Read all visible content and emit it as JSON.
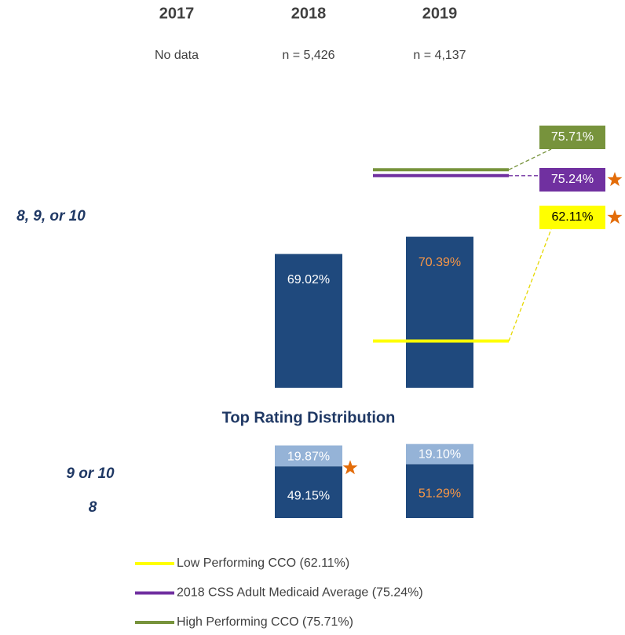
{
  "chart_data": {
    "type": "bar",
    "categories": [
      "2017",
      "2018",
      "2019"
    ],
    "sample_sizes": [
      "No data",
      "n = 5,426",
      "n = 4,137"
    ],
    "row_label": "8, 9, or 10",
    "values": [
      null,
      69.02,
      70.39
    ],
    "value_labels": [
      null,
      "69.02%",
      "70.39%"
    ],
    "label_colors": [
      null,
      "#ffffff",
      "#f79646"
    ],
    "color": "#1f497d",
    "ylim": [
      58.4,
      76
    ],
    "benchmarks": [
      {
        "name": "Low Performing CCO (62.11%)",
        "value": 62.11,
        "value_label": "62.11%",
        "color": "#ffff00",
        "text_color": "#000000",
        "star": true
      },
      {
        "name": "2018 CSS Adult Medicaid Average (75.24%)",
        "value": 75.24,
        "value_label": "75.24%",
        "color": "#7030a0",
        "text_color": "#ffffff",
        "star": true
      },
      {
        "name": "High Performing CCO (75.71%)",
        "value": 75.71,
        "value_label": "75.71%",
        "color": "#77933c",
        "text_color": "#ffffff",
        "star": false
      }
    ],
    "distribution": {
      "title": "Top Rating Distribution",
      "series": [
        {
          "name": "9 or 10",
          "color": "#1f497d",
          "values": [
            null,
            49.15,
            51.29
          ],
          "value_labels": [
            null,
            "49.15%",
            "51.29%"
          ],
          "label_colors": [
            null,
            "#ffffff",
            "#f79646"
          ],
          "stars": [
            false,
            true,
            false
          ]
        },
        {
          "name": "8",
          "color": "#95b3d7",
          "values": [
            null,
            19.87,
            19.1
          ],
          "value_labels": [
            null,
            "19.87%",
            "19.10%"
          ],
          "label_colors": [
            null,
            "#ffffff",
            "#ffffff"
          ],
          "stars": [
            false,
            false,
            false
          ]
        }
      ]
    },
    "star_color": "#e36c09"
  }
}
